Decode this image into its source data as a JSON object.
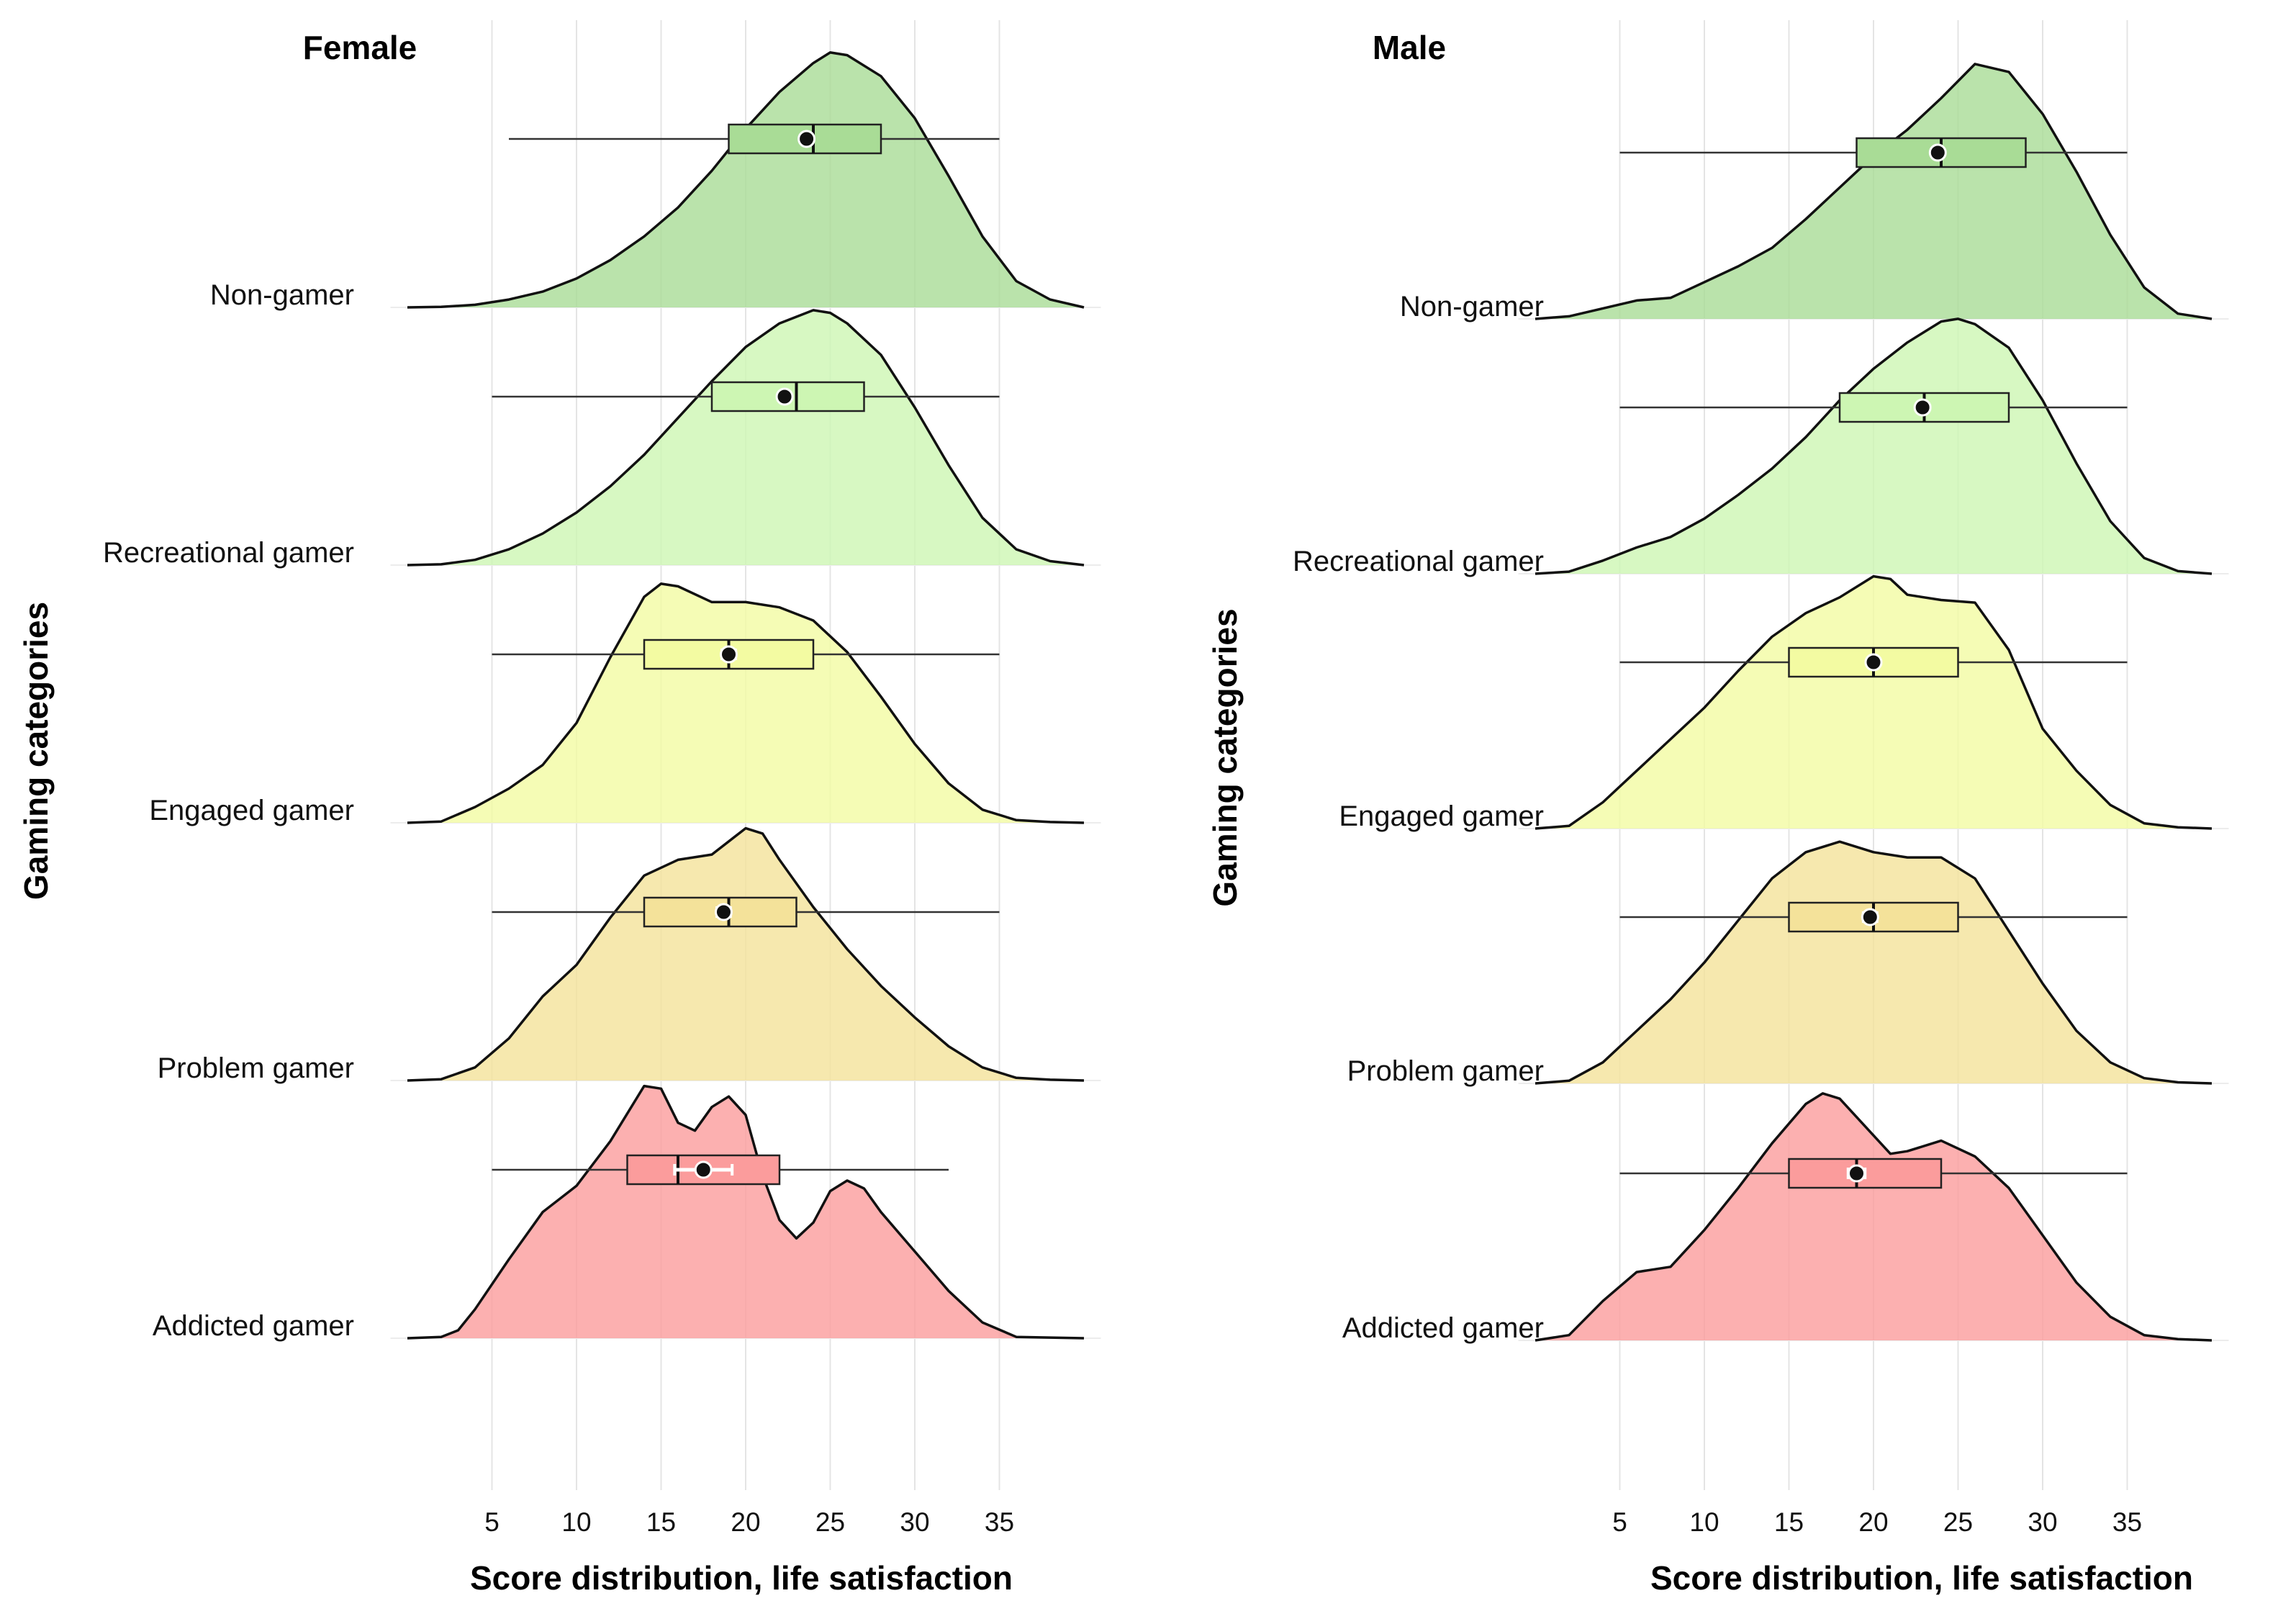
{
  "chart_data": [
    {
      "type": "ridgeline",
      "title": "Female",
      "xlabel": "Score distribution, life satisfaction",
      "ylabel": "Gaming categories",
      "xlim": [
        0,
        40
      ],
      "xticks": [
        5,
        10,
        15,
        20,
        25,
        30,
        35
      ],
      "grid": true,
      "categories": [
        "Non-gamer",
        "Recreational gamer",
        "Engaged gamer",
        "Problem gamer",
        "Addicted gamer"
      ],
      "series": [
        {
          "name": "Non-gamer",
          "color": "#a9dc96",
          "density": [
            [
              0,
              0
            ],
            [
              2,
              0.2
            ],
            [
              4,
              1
            ],
            [
              6,
              3
            ],
            [
              8,
              6
            ],
            [
              10,
              11
            ],
            [
              12,
              18
            ],
            [
              14,
              27
            ],
            [
              16,
              38
            ],
            [
              18,
              52
            ],
            [
              20,
              68
            ],
            [
              22,
              82
            ],
            [
              24,
              93
            ],
            [
              25,
              97
            ],
            [
              26,
              96
            ],
            [
              28,
              88
            ],
            [
              30,
              72
            ],
            [
              32,
              50
            ],
            [
              34,
              27
            ],
            [
              36,
              10
            ],
            [
              38,
              3
            ],
            [
              40,
              0
            ]
          ],
          "box": {
            "wmin": 6,
            "q1": 19,
            "median": 24,
            "q3": 28,
            "wmax": 35,
            "mean": 23.6,
            "ci": [
              23.3,
              23.9
            ]
          }
        },
        {
          "name": "Recreational gamer",
          "color": "#cdf6b3",
          "density": [
            [
              0,
              0
            ],
            [
              2,
              0.3
            ],
            [
              4,
              2
            ],
            [
              6,
              6
            ],
            [
              8,
              12
            ],
            [
              10,
              20
            ],
            [
              12,
              30
            ],
            [
              14,
              42
            ],
            [
              16,
              56
            ],
            [
              18,
              70
            ],
            [
              20,
              83
            ],
            [
              22,
              92
            ],
            [
              24,
              97
            ],
            [
              25,
              96
            ],
            [
              26,
              92
            ],
            [
              28,
              80
            ],
            [
              30,
              60
            ],
            [
              32,
              38
            ],
            [
              34,
              18
            ],
            [
              36,
              6
            ],
            [
              38,
              1.5
            ],
            [
              40,
              0
            ]
          ],
          "box": {
            "wmin": 5,
            "q1": 18,
            "median": 23,
            "q3": 27,
            "wmax": 35,
            "mean": 22.3,
            "ci": [
              22.0,
              22.6
            ]
          }
        },
        {
          "name": "Engaged gamer",
          "color": "#f3fba2",
          "density": [
            [
              0,
              0
            ],
            [
              2,
              0.5
            ],
            [
              4,
              6
            ],
            [
              6,
              13
            ],
            [
              8,
              22
            ],
            [
              10,
              38
            ],
            [
              12,
              63
            ],
            [
              14,
              86
            ],
            [
              15,
              91
            ],
            [
              16,
              90
            ],
            [
              18,
              84
            ],
            [
              20,
              84
            ],
            [
              22,
              82
            ],
            [
              24,
              77
            ],
            [
              26,
              65
            ],
            [
              28,
              48
            ],
            [
              30,
              30
            ],
            [
              32,
              15
            ],
            [
              34,
              5
            ],
            [
              36,
              1
            ],
            [
              38,
              0.3
            ],
            [
              40,
              0
            ]
          ],
          "box": {
            "wmin": 5,
            "q1": 14,
            "median": 19,
            "q3": 24,
            "wmax": 35,
            "mean": 19.0,
            "ci": [
              18.6,
              19.4
            ]
          }
        },
        {
          "name": "Problem gamer",
          "color": "#f4e29a",
          "density": [
            [
              0,
              0
            ],
            [
              2,
              0.5
            ],
            [
              4,
              5
            ],
            [
              6,
              16
            ],
            [
              8,
              32
            ],
            [
              10,
              44
            ],
            [
              12,
              62
            ],
            [
              14,
              78
            ],
            [
              16,
              84
            ],
            [
              18,
              86
            ],
            [
              20,
              96
            ],
            [
              21,
              94
            ],
            [
              22,
              84
            ],
            [
              24,
              66
            ],
            [
              26,
              50
            ],
            [
              28,
              36
            ],
            [
              30,
              24
            ],
            [
              32,
              13
            ],
            [
              34,
              5
            ],
            [
              36,
              1
            ],
            [
              38,
              0.3
            ],
            [
              40,
              0
            ]
          ],
          "box": {
            "wmin": 5,
            "q1": 14,
            "median": 19,
            "q3": 23,
            "wmax": 35,
            "mean": 18.7,
            "ci": [
              18.3,
              19.1
            ]
          }
        },
        {
          "name": "Addicted gamer",
          "color": "#fb9c9c",
          "density": [
            [
              0,
              0
            ],
            [
              2,
              0.5
            ],
            [
              3,
              3
            ],
            [
              4,
              11
            ],
            [
              6,
              30
            ],
            [
              8,
              48
            ],
            [
              10,
              58
            ],
            [
              12,
              75
            ],
            [
              14,
              96
            ],
            [
              15,
              95
            ],
            [
              16,
              82
            ],
            [
              17,
              79
            ],
            [
              18,
              88
            ],
            [
              19,
              92
            ],
            [
              20,
              85
            ],
            [
              21,
              62
            ],
            [
              22,
              45
            ],
            [
              23,
              38
            ],
            [
              24,
              44
            ],
            [
              25,
              56
            ],
            [
              26,
              60
            ],
            [
              27,
              57
            ],
            [
              28,
              48
            ],
            [
              30,
              33
            ],
            [
              32,
              18
            ],
            [
              34,
              6
            ],
            [
              36,
              0.5
            ],
            [
              40,
              0
            ]
          ],
          "box": {
            "wmin": 5,
            "q1": 13,
            "median": 16,
            "q3": 22,
            "wmax": 32,
            "mean": 17.5,
            "ci": [
              15.8,
              19.2
            ]
          }
        }
      ]
    },
    {
      "type": "ridgeline",
      "title": "Male",
      "xlabel": "Score distribution, life satisfaction",
      "ylabel": "Gaming categories",
      "xlim": [
        0,
        40
      ],
      "xticks": [
        5,
        10,
        15,
        20,
        25,
        30,
        35
      ],
      "grid": true,
      "categories": [
        "Non-gamer",
        "Recreational gamer",
        "Engaged gamer",
        "Problem gamer",
        "Addicted gamer"
      ],
      "series": [
        {
          "name": "Non-gamer",
          "color": "#a9dc96",
          "density": [
            [
              0,
              0
            ],
            [
              2,
              1
            ],
            [
              4,
              4
            ],
            [
              6,
              7
            ],
            [
              8,
              8
            ],
            [
              10,
              14
            ],
            [
              12,
              20
            ],
            [
              14,
              27
            ],
            [
              16,
              38
            ],
            [
              18,
              50
            ],
            [
              20,
              62
            ],
            [
              22,
              72
            ],
            [
              24,
              84
            ],
            [
              26,
              97
            ],
            [
              28,
              94
            ],
            [
              30,
              78
            ],
            [
              32,
              56
            ],
            [
              34,
              32
            ],
            [
              36,
              12
            ],
            [
              38,
              2
            ],
            [
              40,
              0
            ]
          ],
          "box": {
            "wmin": 5,
            "q1": 19,
            "median": 24,
            "q3": 29,
            "wmax": 35,
            "mean": 23.8,
            "ci": [
              23.6,
              24.0
            ]
          }
        },
        {
          "name": "Recreational gamer",
          "color": "#cdf6b3",
          "density": [
            [
              0,
              0
            ],
            [
              2,
              0.8
            ],
            [
              4,
              5
            ],
            [
              6,
              10
            ],
            [
              8,
              14
            ],
            [
              10,
              21
            ],
            [
              12,
              30
            ],
            [
              14,
              40
            ],
            [
              16,
              52
            ],
            [
              18,
              66
            ],
            [
              20,
              78
            ],
            [
              22,
              88
            ],
            [
              24,
              96
            ],
            [
              25,
              97
            ],
            [
              26,
              95
            ],
            [
              28,
              86
            ],
            [
              30,
              66
            ],
            [
              32,
              42
            ],
            [
              34,
              20
            ],
            [
              36,
              6
            ],
            [
              38,
              1
            ],
            [
              40,
              0
            ]
          ],
          "box": {
            "wmin": 5,
            "q1": 18,
            "median": 23,
            "q3": 28,
            "wmax": 35,
            "mean": 22.9,
            "ci": [
              22.7,
              23.1
            ]
          }
        },
        {
          "name": "Engaged gamer",
          "color": "#f3fba2",
          "density": [
            [
              0,
              0
            ],
            [
              2,
              1
            ],
            [
              4,
              10
            ],
            [
              6,
              22
            ],
            [
              8,
              34
            ],
            [
              10,
              46
            ],
            [
              12,
              60
            ],
            [
              14,
              73
            ],
            [
              16,
              82
            ],
            [
              18,
              88
            ],
            [
              20,
              96
            ],
            [
              21,
              95
            ],
            [
              22,
              89
            ],
            [
              24,
              87
            ],
            [
              26,
              86
            ],
            [
              28,
              68
            ],
            [
              30,
              38
            ],
            [
              32,
              22
            ],
            [
              34,
              9
            ],
            [
              36,
              2
            ],
            [
              38,
              0.5
            ],
            [
              40,
              0
            ]
          ],
          "box": {
            "wmin": 5,
            "q1": 15,
            "median": 20,
            "q3": 25,
            "wmax": 35,
            "mean": 20.0,
            "ci": [
              19.7,
              20.3
            ]
          }
        },
        {
          "name": "Problem gamer",
          "color": "#f4e29a",
          "density": [
            [
              0,
              0
            ],
            [
              2,
              1
            ],
            [
              4,
              8
            ],
            [
              6,
              20
            ],
            [
              8,
              32
            ],
            [
              10,
              46
            ],
            [
              12,
              62
            ],
            [
              14,
              78
            ],
            [
              16,
              88
            ],
            [
              18,
              92
            ],
            [
              20,
              88
            ],
            [
              22,
              86
            ],
            [
              24,
              86
            ],
            [
              26,
              78
            ],
            [
              28,
              58
            ],
            [
              30,
              38
            ],
            [
              32,
              20
            ],
            [
              34,
              8
            ],
            [
              36,
              2
            ],
            [
              38,
              0.4
            ],
            [
              40,
              0
            ]
          ],
          "box": {
            "wmin": 5,
            "q1": 15,
            "median": 20,
            "q3": 25,
            "wmax": 35,
            "mean": 19.8,
            "ci": [
              19.4,
              20.2
            ]
          }
        },
        {
          "name": "Addicted gamer",
          "color": "#fb9c9c",
          "density": [
            [
              0,
              0
            ],
            [
              2,
              2
            ],
            [
              4,
              15
            ],
            [
              6,
              26
            ],
            [
              8,
              28
            ],
            [
              10,
              42
            ],
            [
              12,
              58
            ],
            [
              14,
              75
            ],
            [
              16,
              90
            ],
            [
              17,
              94
            ],
            [
              18,
              92
            ],
            [
              20,
              78
            ],
            [
              21,
              71
            ],
            [
              22,
              72
            ],
            [
              24,
              76
            ],
            [
              26,
              70
            ],
            [
              28,
              58
            ],
            [
              30,
              40
            ],
            [
              32,
              22
            ],
            [
              34,
              9
            ],
            [
              36,
              2
            ],
            [
              38,
              0.5
            ],
            [
              40,
              0
            ]
          ],
          "box": {
            "wmin": 5,
            "q1": 15,
            "median": 19,
            "q3": 24,
            "wmax": 35,
            "mean": 19.0,
            "ci": [
              18.5,
              19.5
            ]
          }
        }
      ]
    }
  ]
}
